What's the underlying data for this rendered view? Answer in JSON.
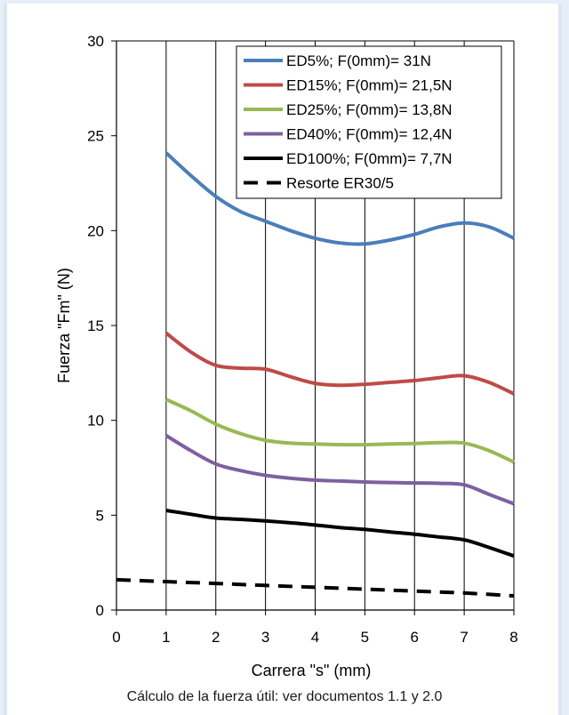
{
  "caption": "Cálculo de la fuerza útil: ver documentos 1.1 y 2.0",
  "chart_data": {
    "type": "line",
    "title": "",
    "xlabel": "Carrera \"s\" (mm)",
    "ylabel": "Fuerza \"Fm\" (N)",
    "xlim": [
      0,
      8
    ],
    "ylim": [
      0,
      30
    ],
    "xticks": [
      "0",
      "1",
      "2",
      "3",
      "4",
      "5",
      "6",
      "7",
      "8"
    ],
    "yticks": [
      "0",
      "5",
      "10",
      "15",
      "20",
      "25",
      "30"
    ],
    "grid": "vertical",
    "legend_position": "top-right",
    "series": [
      {
        "name": "ED5%; F(0mm)= 31N",
        "color": "#4a7ebb",
        "dash": false,
        "x": [
          1,
          1.5,
          2,
          2.5,
          3,
          3.5,
          4,
          4.5,
          5,
          5.5,
          6,
          6.5,
          7,
          7.5,
          8
        ],
        "y": [
          24.1,
          22.9,
          21.8,
          21.0,
          20.5,
          20.0,
          19.6,
          19.35,
          19.3,
          19.5,
          19.8,
          20.2,
          20.4,
          20.2,
          19.6
        ]
      },
      {
        "name": "ED15%; F(0mm)= 21,5N",
        "color": "#be4b48",
        "dash": false,
        "x": [
          1,
          1.5,
          2,
          2.5,
          3,
          3.5,
          4,
          4.5,
          5,
          5.5,
          6,
          6.5,
          7,
          7.5,
          8
        ],
        "y": [
          14.6,
          13.6,
          12.9,
          12.75,
          12.7,
          12.3,
          11.95,
          11.85,
          11.9,
          12.0,
          12.1,
          12.25,
          12.35,
          12.0,
          11.4
        ]
      },
      {
        "name": "ED25%; F(0mm)= 13,8N",
        "color": "#98b954",
        "dash": false,
        "x": [
          1,
          1.5,
          2,
          2.5,
          3,
          3.5,
          4,
          4.5,
          5,
          5.5,
          6,
          6.5,
          7,
          7.5,
          8
        ],
        "y": [
          11.1,
          10.5,
          9.8,
          9.3,
          8.95,
          8.8,
          8.75,
          8.72,
          8.72,
          8.75,
          8.78,
          8.82,
          8.8,
          8.4,
          7.8
        ]
      },
      {
        "name": "ED40%; F(0mm)= 12,4N",
        "color": "#7d60a0",
        "dash": false,
        "x": [
          1,
          1.5,
          2,
          2.5,
          3,
          3.5,
          4,
          4.5,
          5,
          5.5,
          6,
          6.5,
          7,
          7.5,
          8
        ],
        "y": [
          9.2,
          8.4,
          7.7,
          7.35,
          7.1,
          6.95,
          6.85,
          6.8,
          6.75,
          6.72,
          6.7,
          6.68,
          6.6,
          6.1,
          5.6
        ]
      },
      {
        "name": "ED100%; F(0mm)= 7,7N",
        "color": "#000000",
        "dash": false,
        "x": [
          1,
          1.5,
          2,
          2.5,
          3,
          3.5,
          4,
          4.5,
          5,
          5.5,
          6,
          6.5,
          7,
          7.5,
          8
        ],
        "y": [
          5.25,
          5.05,
          4.85,
          4.78,
          4.7,
          4.6,
          4.48,
          4.35,
          4.25,
          4.12,
          4.0,
          3.85,
          3.7,
          3.3,
          2.85
        ]
      },
      {
        "name": "Resorte ER30/5",
        "color": "#000000",
        "dash": true,
        "x": [
          0,
          1,
          2,
          3,
          4,
          5,
          6,
          7,
          8
        ],
        "y": [
          1.6,
          1.5,
          1.4,
          1.3,
          1.2,
          1.1,
          1.0,
          0.9,
          0.75
        ]
      }
    ]
  }
}
